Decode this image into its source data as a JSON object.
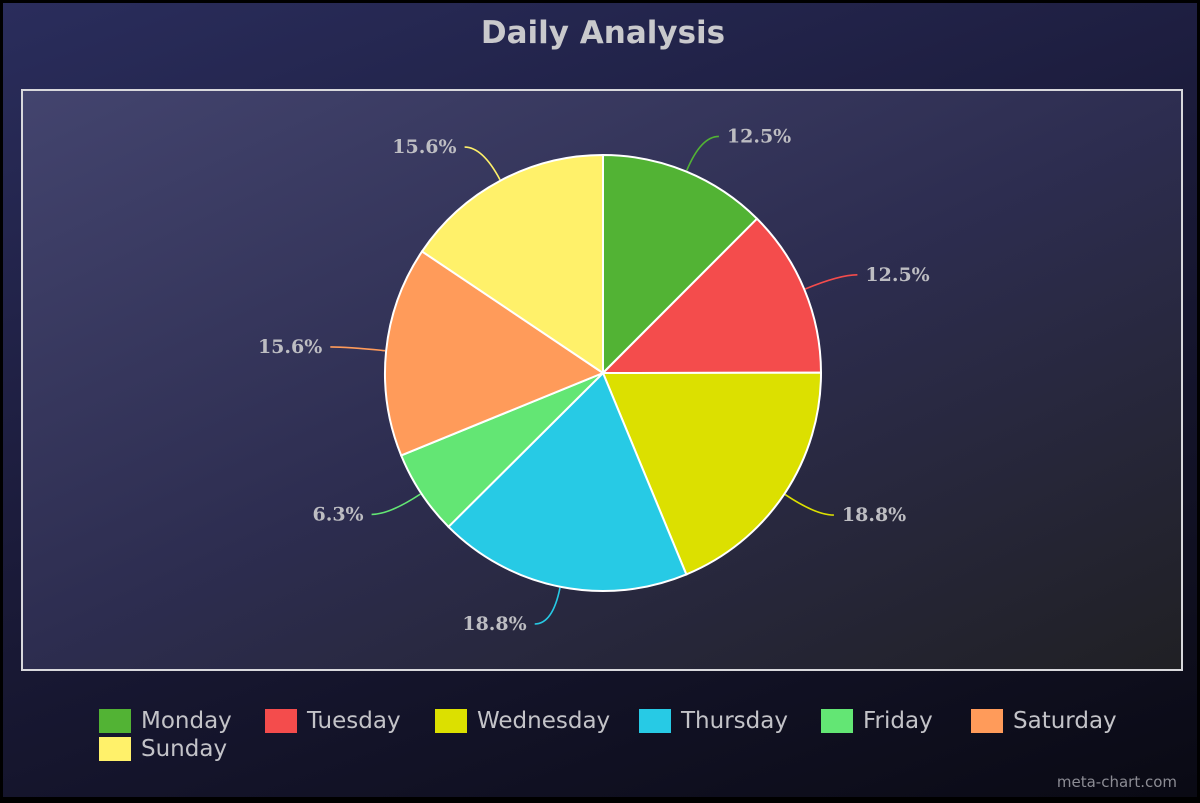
{
  "chart_data": {
    "type": "pie",
    "title": "Daily Analysis",
    "categories": [
      "Monday",
      "Tuesday",
      "Wednesday",
      "Thursday",
      "Friday",
      "Saturday",
      "Sunday"
    ],
    "values": [
      12.5,
      12.5,
      18.8,
      18.8,
      6.3,
      15.6,
      15.6
    ],
    "labels": [
      "12.5%",
      "12.5%",
      "18.8%",
      "18.8%",
      "6.3%",
      "15.6%",
      "15.6%"
    ],
    "colors": [
      "#52b334",
      "#f44c4c",
      "#dce000",
      "#27cae5",
      "#63e674",
      "#ff9b5a",
      "#fff16a"
    ],
    "legend_position": "bottom"
  },
  "watermark": "meta-chart.com"
}
